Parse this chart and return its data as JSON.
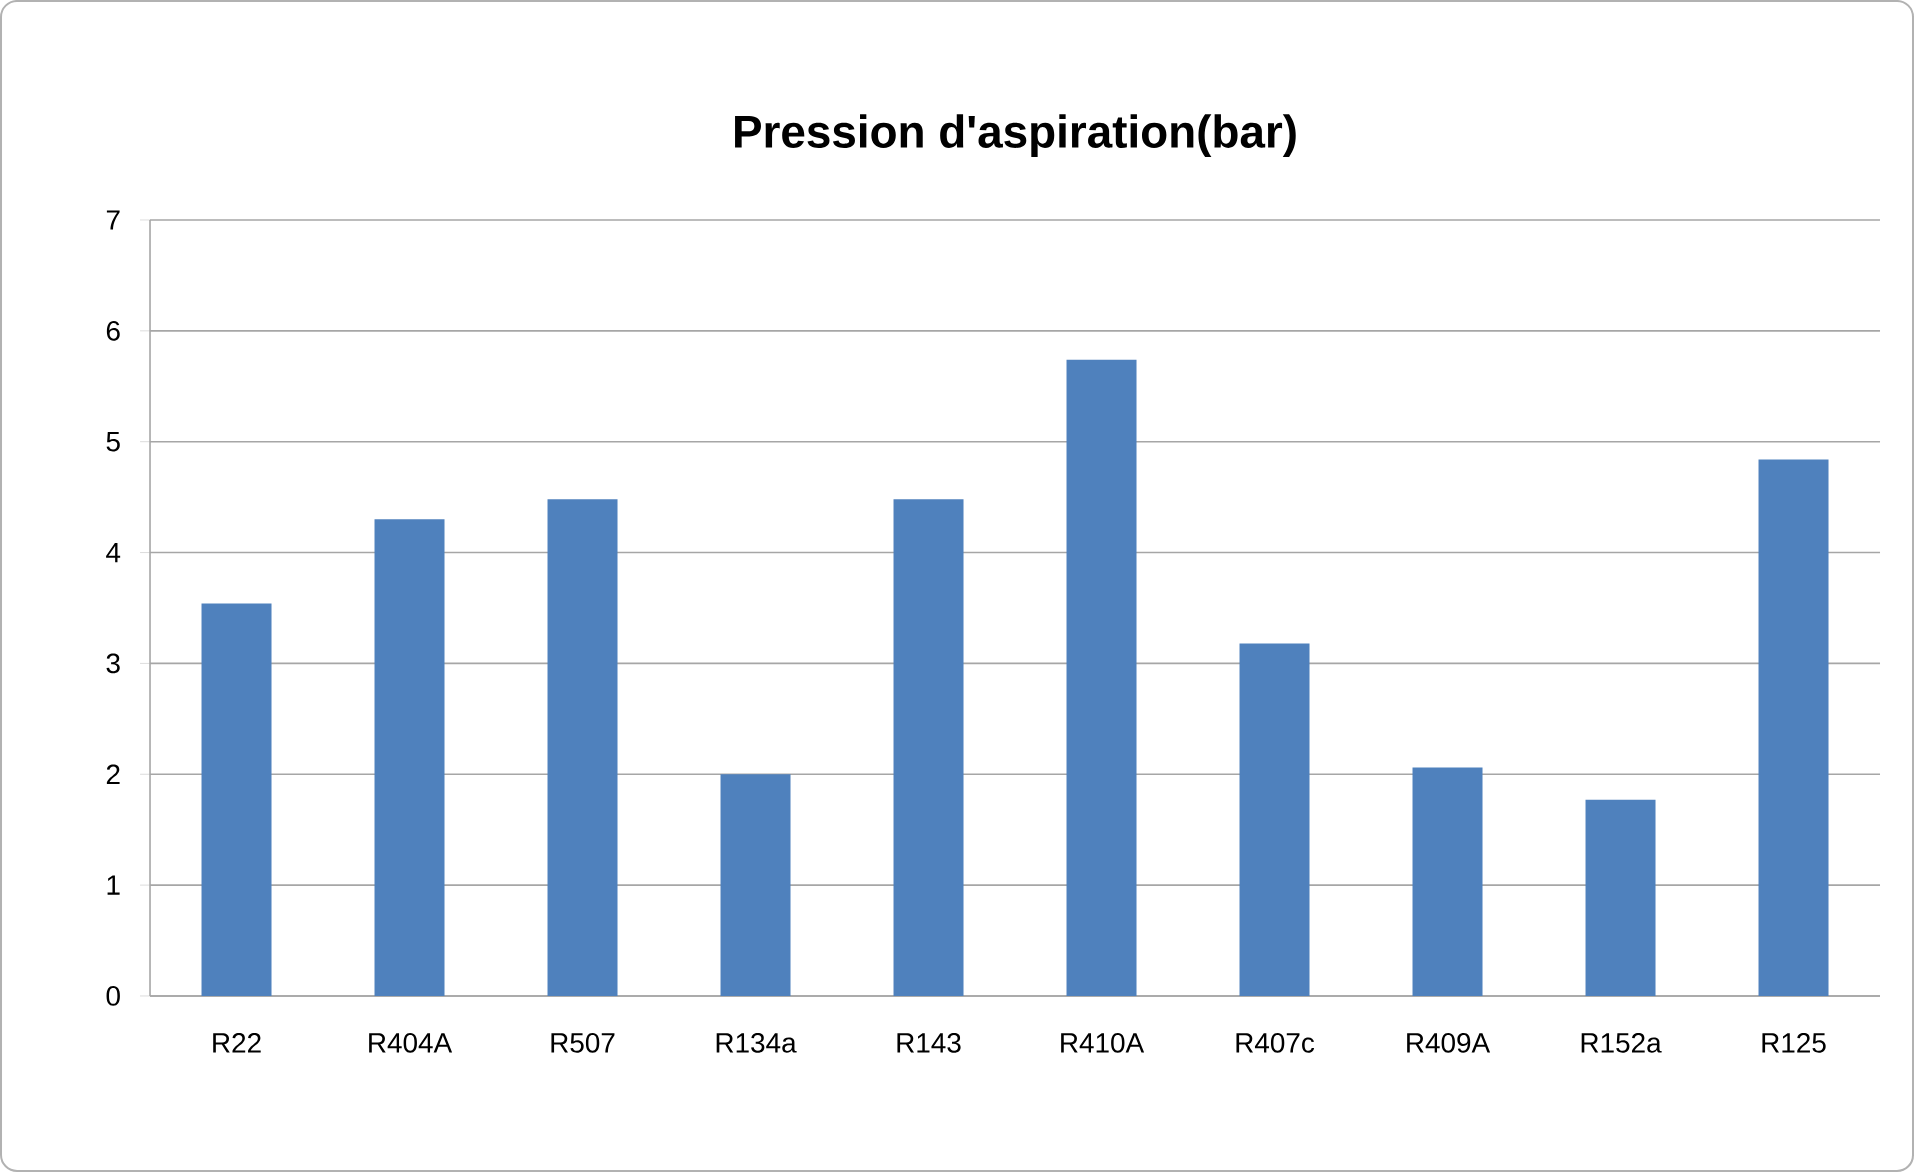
{
  "chart_data": {
    "type": "bar",
    "title": "Pression d'aspiration(bar)",
    "categories": [
      "R22",
      "R404A",
      "R507",
      "R134a",
      "R143",
      "R410A",
      "R407c",
      "R409A",
      "R152a",
      "R125"
    ],
    "values": [
      3.54,
      4.3,
      4.48,
      2.0,
      4.48,
      5.74,
      3.18,
      2.06,
      1.77,
      4.84
    ],
    "color": "#4f81bd",
    "ylim": [
      0,
      7
    ],
    "yticks": [
      0,
      1,
      2,
      3,
      4,
      5,
      6,
      7
    ],
    "grid": "y"
  }
}
